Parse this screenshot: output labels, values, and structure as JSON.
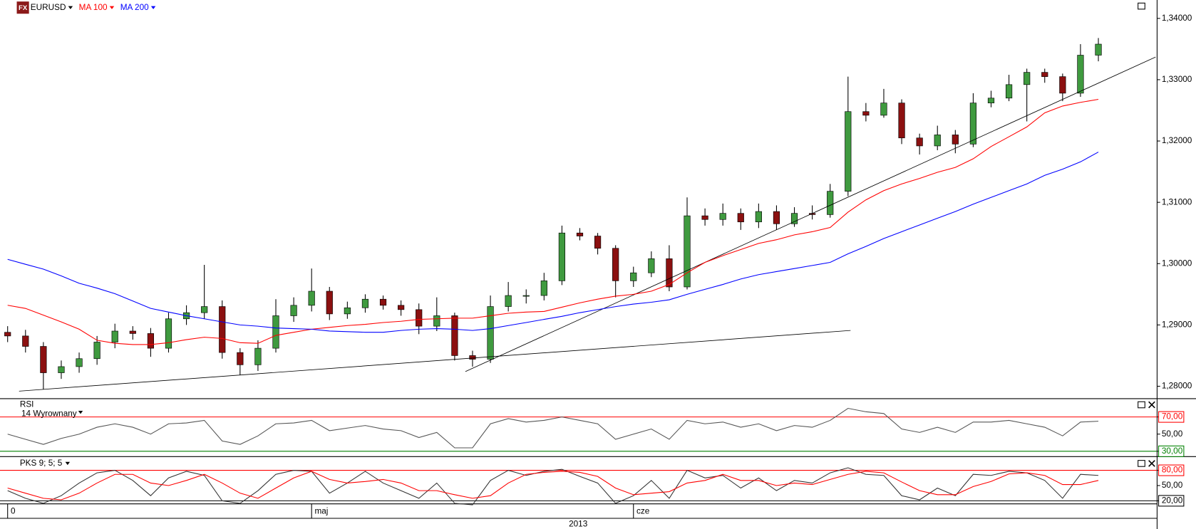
{
  "chart_data": [
    {
      "type": "candlestick",
      "title": "EURUSD",
      "icon_text": "FX",
      "x_period_label": "2013",
      "categories": [
        "0",
        null,
        null,
        null,
        null,
        null,
        null,
        null,
        null,
        null,
        null,
        null,
        null,
        null,
        null,
        null,
        null,
        "maj",
        null,
        null,
        null,
        null,
        null,
        null,
        null,
        null,
        null,
        null,
        null,
        null,
        null,
        null,
        null,
        null,
        null,
        "cze",
        null,
        null,
        null,
        null,
        null,
        null,
        null,
        null,
        null,
        null,
        null,
        null,
        null,
        null,
        null,
        null,
        null,
        null,
        null,
        null,
        null,
        null,
        null,
        null,
        null,
        null
      ],
      "open": [
        1.2888,
        1.2882,
        1.2865,
        1.2822,
        1.2832,
        1.2845,
        1.2872,
        1.289,
        1.2886,
        1.2862,
        1.291,
        1.292,
        1.293,
        1.2855,
        1.2835,
        1.2862,
        1.2915,
        1.2932,
        1.2955,
        1.2918,
        1.2928,
        1.2942,
        1.2932,
        1.2925,
        1.2898,
        1.2915,
        1.285,
        1.2844,
        1.293,
        1.2948,
        1.2948,
        1.2972,
        1.305,
        1.3045,
        1.3025,
        1.2972,
        1.2985,
        1.3008,
        1.2962,
        1.3078,
        1.3072,
        1.3082,
        1.3068,
        1.3085,
        1.3065,
        1.3082,
        1.308,
        1.3118,
        1.3248,
        1.3242,
        1.3262,
        1.3205,
        1.3192,
        1.321,
        1.3195,
        1.3262,
        1.327,
        1.3292,
        1.3312,
        1.3305,
        1.3278,
        1.334
      ],
      "high": [
        1.2898,
        1.2892,
        1.2872,
        1.2842,
        1.2855,
        1.2882,
        1.2902,
        1.2898,
        1.2895,
        1.292,
        1.2932,
        1.2998,
        1.294,
        1.2862,
        1.2875,
        1.2942,
        1.2945,
        1.2992,
        1.2962,
        1.2938,
        1.295,
        1.2948,
        1.294,
        1.2935,
        1.2945,
        1.292,
        1.2858,
        1.2948,
        1.297,
        1.2958,
        1.2985,
        1.3062,
        1.3058,
        1.305,
        1.303,
        1.2995,
        1.302,
        1.303,
        1.3108,
        1.309,
        1.3098,
        1.309,
        1.3098,
        1.3095,
        1.3092,
        1.3095,
        1.313,
        1.3305,
        1.3262,
        1.3285,
        1.3268,
        1.3212,
        1.3225,
        1.3218,
        1.3278,
        1.3282,
        1.3308,
        1.3318,
        1.3318,
        1.331,
        1.3358,
        1.3368
      ],
      "low": [
        1.2872,
        1.2855,
        1.2795,
        1.2812,
        1.2822,
        1.2835,
        1.2862,
        1.2876,
        1.2848,
        1.2855,
        1.29,
        1.291,
        1.2845,
        1.2818,
        1.2825,
        1.2855,
        1.2905,
        1.2922,
        1.2908,
        1.291,
        1.292,
        1.2925,
        1.2915,
        1.2885,
        1.289,
        1.2842,
        1.2832,
        1.2838,
        1.2922,
        1.2935,
        1.294,
        1.2965,
        1.3038,
        1.3015,
        1.2945,
        1.2962,
        1.2978,
        1.2955,
        1.2958,
        1.3062,
        1.3062,
        1.3055,
        1.3058,
        1.3055,
        1.306,
        1.3072,
        1.3075,
        1.311,
        1.3232,
        1.3238,
        1.3195,
        1.3178,
        1.3185,
        1.318,
        1.319,
        1.3255,
        1.3265,
        1.3232,
        1.3295,
        1.3265,
        1.3272,
        1.333
      ],
      "close": [
        1.2882,
        1.2865,
        1.2822,
        1.2832,
        1.2845,
        1.2872,
        1.289,
        1.2886,
        1.2862,
        1.291,
        1.292,
        1.293,
        1.2855,
        1.2835,
        1.2862,
        1.2915,
        1.2932,
        1.2955,
        1.2918,
        1.2928,
        1.2942,
        1.2932,
        1.2925,
        1.2898,
        1.2915,
        1.285,
        1.2844,
        1.293,
        1.2948,
        1.2948,
        1.2972,
        1.305,
        1.3045,
        1.3025,
        1.2972,
        1.2985,
        1.3008,
        1.2962,
        1.3078,
        1.3072,
        1.3082,
        1.3068,
        1.3085,
        1.3065,
        1.3082,
        1.308,
        1.3118,
        1.3248,
        1.3242,
        1.3262,
        1.3205,
        1.3192,
        1.321,
        1.3195,
        1.3262,
        1.327,
        1.3292,
        1.3312,
        1.3305,
        1.3278,
        1.334,
        1.3358
      ],
      "up_color": "#3f9a3f",
      "down_color": "#8b1010",
      "title_color": "#000000",
      "series": [
        {
          "name": "MA 100",
          "color": "#ff0000",
          "values": [
            1.2932,
            1.2927,
            1.2916,
            1.2905,
            1.2893,
            1.2875,
            1.287,
            1.2868,
            1.2868,
            1.2871,
            1.2876,
            1.288,
            1.2878,
            1.2871,
            1.287,
            1.2883,
            1.2888,
            1.2893,
            1.2896,
            1.2899,
            1.2901,
            1.2904,
            1.2906,
            1.2909,
            1.291,
            1.2911,
            1.2911,
            1.2915,
            1.2919,
            1.2921,
            1.2922,
            1.2929,
            1.2936,
            1.2942,
            1.2947,
            1.295,
            1.2955,
            1.2966,
            1.2985,
            1.3002,
            1.3013,
            1.3023,
            1.3033,
            1.3039,
            1.3047,
            1.3052,
            1.3059,
            1.3084,
            1.3104,
            1.3119,
            1.313,
            1.3139,
            1.3149,
            1.3157,
            1.3171,
            1.3191,
            1.3207,
            1.3223,
            1.3246,
            1.3257,
            1.3263,
            1.3268
          ]
        },
        {
          "name": "MA 200",
          "color": "#0000ff",
          "values": [
            1.3007,
            1.2999,
            1.2991,
            1.298,
            1.2968,
            1.296,
            1.2951,
            1.2939,
            1.2927,
            1.2921,
            1.2915,
            1.291,
            1.2905,
            1.29,
            1.2898,
            1.2895,
            1.2894,
            1.2893,
            1.289,
            1.2889,
            1.2888,
            1.2888,
            1.2891,
            1.2893,
            1.2894,
            1.2893,
            1.2891,
            1.2894,
            1.2899,
            1.2904,
            1.2909,
            1.2914,
            1.292,
            1.2925,
            1.293,
            1.2934,
            1.2937,
            1.2941,
            1.295,
            1.2958,
            1.2966,
            1.2975,
            1.2982,
            1.2987,
            1.2992,
            1.2997,
            1.3002,
            1.3016,
            1.3028,
            1.3041,
            1.3052,
            1.3063,
            1.3074,
            1.3085,
            1.3097,
            1.3108,
            1.3119,
            1.313,
            1.3144,
            1.3154,
            1.3166,
            1.3182
          ]
        }
      ],
      "trendlines": [
        {
          "color": "#000000",
          "x": [
            0.64,
            47.14
          ],
          "y": [
            1.2792,
            1.2891
          ]
        },
        {
          "color": "#000000",
          "x": [
            25.6,
            64.2
          ],
          "y": [
            1.2824,
            1.3337
          ]
        }
      ],
      "ylim": [
        1.2781,
        1.343
      ],
      "yticks": [
        {
          "value": 1.28,
          "label": "1,28000"
        },
        {
          "value": 1.29,
          "label": "1,29000"
        },
        {
          "value": 1.3,
          "label": "1,30000"
        },
        {
          "value": 1.31,
          "label": "1,31000"
        },
        {
          "value": 1.32,
          "label": "1,32000"
        },
        {
          "value": 1.33,
          "label": "1,33000"
        },
        {
          "value": 1.34,
          "label": "1,34000"
        }
      ]
    },
    {
      "type": "line",
      "title": "RSI",
      "subtitle": "14 Wyrownany",
      "series": [
        {
          "color": "#555555",
          "values": [
            50,
            44,
            38,
            45,
            50,
            58,
            62,
            58,
            50,
            62,
            63,
            66,
            42,
            38,
            48,
            62,
            63,
            66,
            54,
            57,
            60,
            56,
            54,
            46,
            52,
            34,
            34,
            62,
            68,
            64,
            66,
            70,
            66,
            62,
            44,
            50,
            56,
            44,
            66,
            62,
            64,
            58,
            62,
            54,
            60,
            58,
            66,
            80,
            76,
            74,
            56,
            52,
            58,
            52,
            64,
            64,
            66,
            62,
            58,
            48,
            64,
            65
          ]
        }
      ],
      "ref_lines": [
        {
          "value": 70,
          "color": "#ff0000"
        },
        {
          "value": 30,
          "color": "#008000"
        }
      ],
      "ylim": [
        24.7,
        91.3
      ],
      "yticks": [
        {
          "value": 30,
          "label": "30,00"
        },
        {
          "value": 50,
          "label": "50,00"
        },
        {
          "value": 70,
          "label": "70,00"
        }
      ]
    },
    {
      "type": "line",
      "title": "PKS 9; 5; 5",
      "series": [
        {
          "color": "#333333",
          "values": [
            40,
            25,
            15,
            30,
            55,
            75,
            80,
            60,
            30,
            65,
            78,
            70,
            20,
            15,
            40,
            72,
            80,
            78,
            35,
            55,
            78,
            55,
            40,
            25,
            55,
            15,
            12,
            60,
            80,
            70,
            78,
            82,
            68,
            55,
            15,
            30,
            60,
            25,
            80,
            65,
            70,
            45,
            65,
            40,
            60,
            55,
            75,
            85,
            72,
            70,
            30,
            22,
            45,
            30,
            72,
            70,
            78,
            75,
            60,
            25,
            72,
            70
          ]
        },
        {
          "color": "#ff0000",
          "values": [
            45,
            35,
            25,
            22,
            35,
            55,
            72,
            72,
            55,
            50,
            60,
            72,
            55,
            35,
            25,
            45,
            65,
            78,
            62,
            55,
            58,
            62,
            55,
            40,
            40,
            32,
            25,
            30,
            55,
            72,
            76,
            78,
            76,
            68,
            45,
            32,
            35,
            38,
            55,
            60,
            72,
            60,
            60,
            50,
            55,
            52,
            62,
            72,
            78,
            75,
            57,
            40,
            32,
            32,
            48,
            58,
            73,
            75,
            70,
            52,
            52,
            60
          ]
        }
      ],
      "ref_lines": [
        {
          "value": 80,
          "color": "#ff0000"
        },
        {
          "value": 20,
          "color": "#000000"
        }
      ],
      "ylim": [
        15.5,
        105.5
      ],
      "yticks": [
        {
          "value": 20,
          "label": "20,00"
        },
        {
          "value": 50,
          "label": "50,00"
        },
        {
          "value": 80,
          "label": "80,00"
        }
      ]
    }
  ]
}
